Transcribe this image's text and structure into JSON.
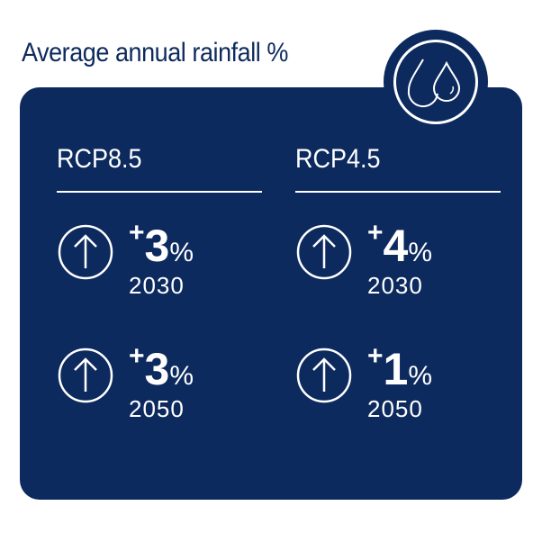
{
  "title": "Average annual rainfall %",
  "icon": "water-drops-icon",
  "colors": {
    "navy": "#0d2a5e",
    "text": "#ffffff"
  },
  "scenarios": [
    {
      "name": "RCP8.5",
      "rows": [
        {
          "sign": "+",
          "value": "3",
          "unit": "%",
          "year": "2030",
          "direction": "up"
        },
        {
          "sign": "+",
          "value": "3",
          "unit": "%",
          "year": "2050",
          "direction": "up"
        }
      ]
    },
    {
      "name": "RCP4.5",
      "rows": [
        {
          "sign": "+",
          "value": "4",
          "unit": "%",
          "year": "2030",
          "direction": "up"
        },
        {
          "sign": "+",
          "value": "1",
          "unit": "%",
          "year": "2050",
          "direction": "up"
        }
      ]
    }
  ]
}
